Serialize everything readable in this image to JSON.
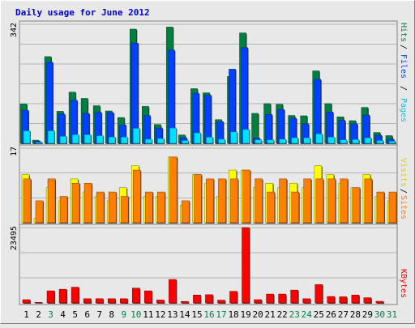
{
  "chart_data": [
    {
      "type": "bar",
      "title": "Daily usage for June 2012",
      "categories": [
        "1",
        "2",
        "3",
        "4",
        "5",
        "6",
        "7",
        "8",
        "9",
        "10",
        "11",
        "12",
        "13",
        "14",
        "15",
        "16",
        "17",
        "18",
        "19",
        "20",
        "21",
        "22",
        "23",
        "24",
        "25",
        "26",
        "27",
        "28",
        "29",
        "30",
        "31"
      ],
      "weekend_categories": [
        "3",
        "9",
        "10",
        "16",
        "17",
        "23",
        "24",
        "30",
        "31"
      ],
      "ymax_label": "342",
      "ymax": 342,
      "legend": [
        "Pages",
        "Files",
        "Hits"
      ],
      "series": [
        {
          "name": "Hits",
          "color": "#008040",
          "values": [
            113,
            9,
            249,
            92,
            147,
            129,
            108,
            93,
            74,
            328,
            106,
            54,
            334,
            24,
            157,
            145,
            68,
            192,
            317,
            86,
            114,
            112,
            80,
            79,
            208,
            114,
            76,
            65,
            103,
            31,
            22
          ]
        },
        {
          "name": "Files",
          "color": "#0040ff",
          "values": [
            95,
            6,
            233,
            84,
            124,
            86,
            89,
            88,
            53,
            288,
            80,
            44,
            268,
            16,
            144,
            138,
            62,
            213,
            275,
            15,
            83,
            97,
            72,
            56,
            184,
            90,
            66,
            56,
            81,
            23,
            12
          ]
        },
        {
          "name": "Pages",
          "color": "#00e0ff",
          "values": [
            36,
            3,
            36,
            20,
            25,
            25,
            22,
            18,
            18,
            43,
            12,
            14,
            44,
            8,
            30,
            18,
            12,
            33,
            40,
            10,
            10,
            12,
            16,
            16,
            27,
            18,
            10,
            11,
            16,
            8,
            6
          ]
        }
      ]
    },
    {
      "type": "bar",
      "ymax_label": "17",
      "ymax": 17,
      "legend": [
        "Sites",
        "Visits"
      ],
      "series": [
        {
          "name": "Visits",
          "color": "#ffff00",
          "values": [
            11,
            1,
            8,
            5,
            10,
            7,
            6,
            5,
            8,
            13,
            6,
            6,
            15,
            4,
            11,
            9,
            6,
            12,
            12,
            8,
            9,
            8,
            9,
            8,
            13,
            11,
            9,
            8,
            11,
            6,
            5
          ]
        },
        {
          "name": "Sites",
          "color": "#ff8000",
          "values": [
            10,
            5,
            10,
            6,
            9,
            9,
            7,
            7,
            6,
            12,
            7,
            7,
            15,
            5,
            11,
            10,
            10,
            10,
            12,
            10,
            7,
            10,
            7,
            10,
            10,
            10,
            10,
            8,
            10,
            7,
            7
          ]
        }
      ]
    },
    {
      "type": "bar",
      "ymax_label": "23495",
      "ymax": 23495,
      "legend": [
        "KBytes"
      ],
      "series": [
        {
          "name": "KBytes",
          "color": "#ff0000",
          "values": [
            1000,
            150,
            3750,
            4250,
            4900,
            1300,
            1300,
            1300,
            1300,
            4600,
            3750,
            900,
            7300,
            450,
            2450,
            2550,
            850,
            3600,
            23495,
            1000,
            2750,
            2750,
            4000,
            1300,
            5700,
            2000,
            1900,
            2450,
            1600,
            500,
            0
          ]
        }
      ]
    }
  ]
}
